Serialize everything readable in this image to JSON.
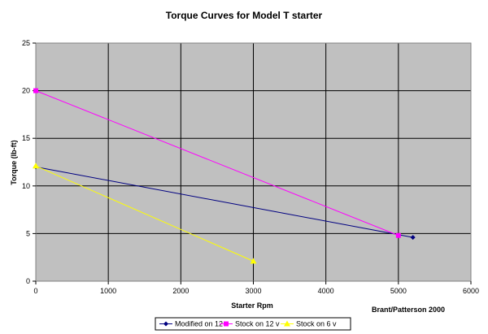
{
  "chart_data": {
    "type": "line",
    "title": "Torque Curves for Model T starter",
    "xlabel": "Starter Rpm",
    "ylabel": "Torque (lb-ft)",
    "xlim": [
      0,
      6000
    ],
    "ylim": [
      0,
      25
    ],
    "xticks": [
      "0",
      "1000",
      "2000",
      "3000",
      "4000",
      "5000",
      "6000"
    ],
    "yticks": [
      "0",
      "5",
      "10",
      "15",
      "20",
      "25"
    ],
    "grid": true,
    "legend_position": "bottom",
    "annotation": "Brant/Patterson 2000",
    "plot_background": "#c0c0c0",
    "series": [
      {
        "name": "Modified on 12 v",
        "color": "#000080",
        "marker": "diamond",
        "points": [
          [
            0,
            12
          ],
          [
            5200,
            4.6
          ]
        ]
      },
      {
        "name": "Stock on 12 v",
        "color": "#ff00ff",
        "marker": "square",
        "points": [
          [
            0,
            20
          ],
          [
            5000,
            4.8
          ]
        ]
      },
      {
        "name": "Stock on 6 v",
        "color": "#ffff00",
        "marker": "triangle",
        "points": [
          [
            0,
            12.1
          ],
          [
            3000,
            2.1
          ]
        ]
      }
    ]
  }
}
